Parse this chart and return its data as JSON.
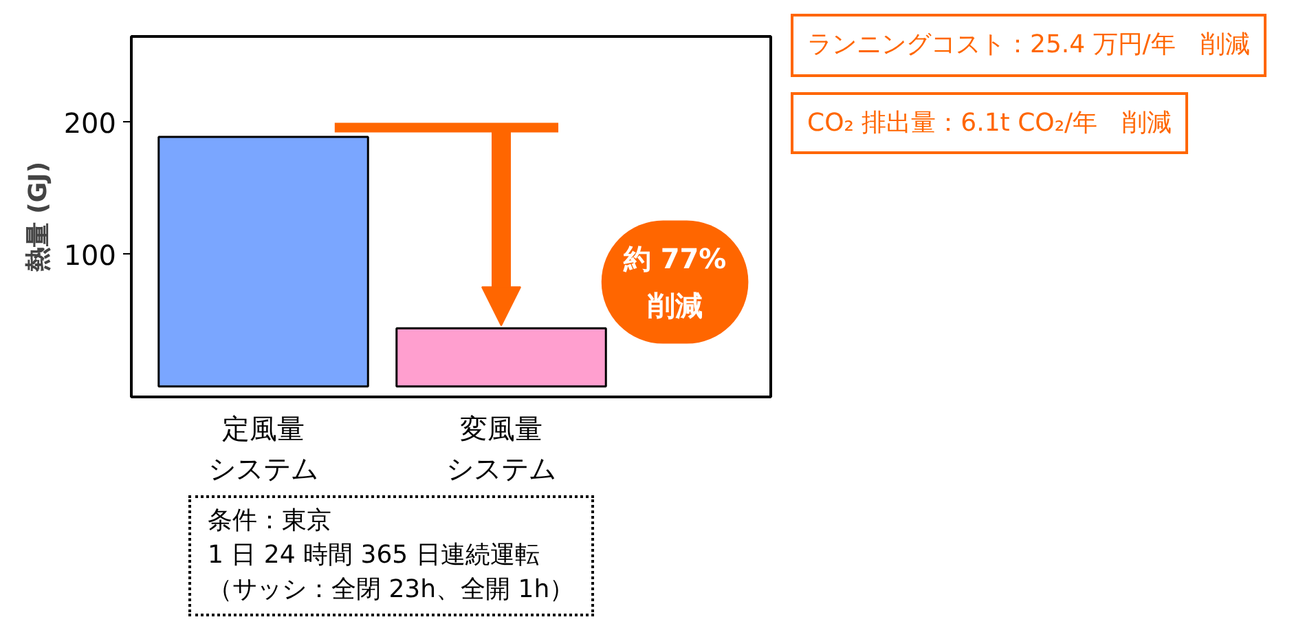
{
  "chart_data": {
    "type": "bar",
    "ylabel": "熱量 (GJ)",
    "categories": [
      "定風量システム",
      "変風量システム"
    ],
    "values": [
      189,
      44
    ],
    "colors": [
      "#7aa6ff",
      "#ff9fcf"
    ],
    "ylim": [
      -8,
      265
    ],
    "yticks": [
      100,
      200
    ],
    "grid": false,
    "ref_lines": [
      {
        "axis": "y",
        "value": 196,
        "color": "#ff6600"
      }
    ],
    "annotations": [
      "ランニングコスト：25.4 万円/年　削減",
      "CO₂ 排出量：6.1t CO₂/年　削減",
      "約 77%\n削減",
      "条件：東京",
      "1 日 24 時間 365 日連続運転",
      "（サッシ：全閉 23h、全開 1h）"
    ]
  }
}
